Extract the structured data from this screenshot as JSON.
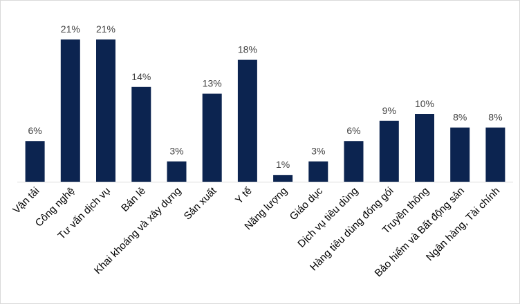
{
  "chart_data": {
    "type": "bar",
    "categories": [
      "Vận tải",
      "Công nghệ",
      "Tư vấn dịch vụ",
      "Bán lẻ",
      "Khai khoáng và xây dựng",
      "Sản xuất",
      "Y tế",
      "Năng lượng",
      "Giáo dục",
      "Dịch vụ tiêu dùng",
      "Hàng tiêu dùng đóng gói",
      "Truyền thông",
      "Bảo hiểm và Bất động sản",
      "Ngân hàng, Tài chính"
    ],
    "values": [
      6,
      21,
      21,
      14,
      3,
      13,
      18,
      1,
      3,
      6,
      9,
      10,
      8,
      8
    ],
    "data_labels": [
      "6%",
      "21%",
      "21%",
      "14%",
      "3%",
      "13%",
      "18%",
      "1%",
      "3%",
      "6%",
      "9%",
      "10%",
      "8%",
      "8%"
    ],
    "unit": "%",
    "title": "",
    "xlabel": "",
    "ylabel": "",
    "ylim": [
      0,
      22
    ],
    "grid": false,
    "legend": "none",
    "colors": {
      "bar": "#0c2450",
      "axis": "#d9d9d9",
      "label": "#404040",
      "category": "#000000"
    }
  }
}
